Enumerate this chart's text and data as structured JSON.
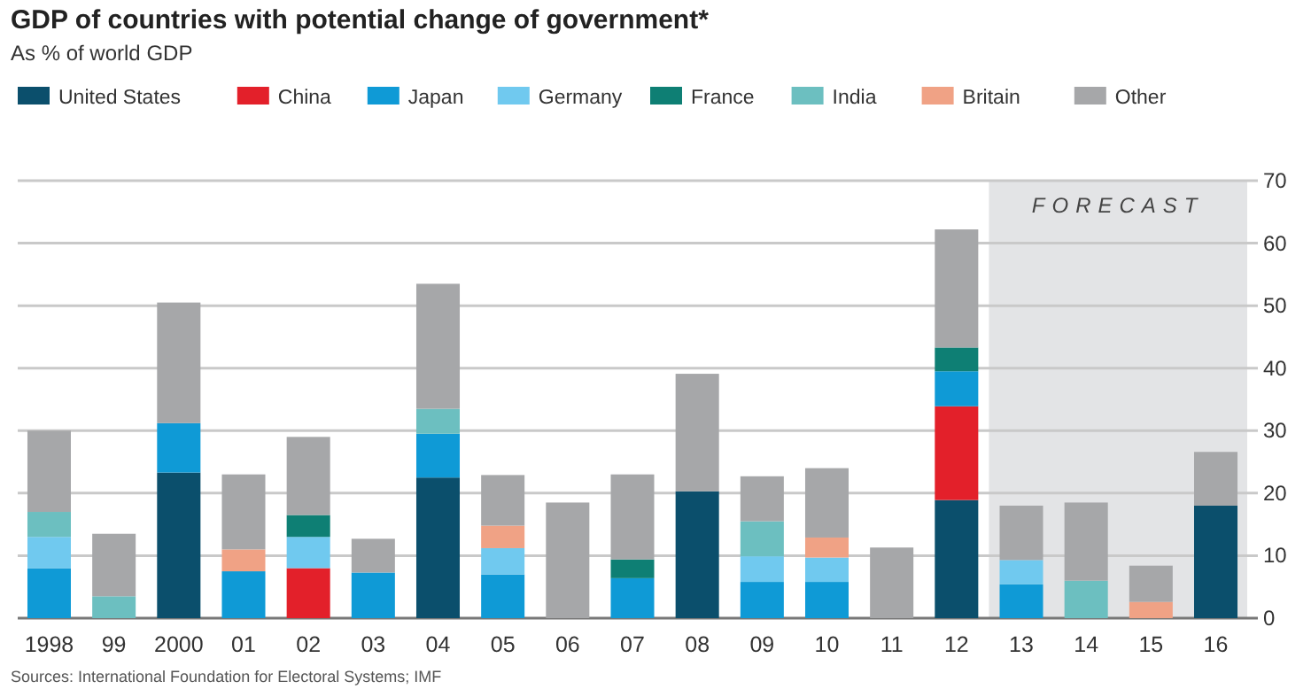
{
  "chart_data": {
    "type": "bar",
    "title": "GDP of countries with potential change of government*",
    "subtitle": "As % of world GDP",
    "stacked": true,
    "categories": [
      "1998",
      "99",
      "2000",
      "01",
      "02",
      "03",
      "04",
      "05",
      "06",
      "07",
      "08",
      "09",
      "10",
      "11",
      "12",
      "13",
      "14",
      "15",
      "16"
    ],
    "series": [
      {
        "name": "United States",
        "color": "#0b4f6c",
        "values": [
          null,
          null,
          23.3,
          null,
          null,
          null,
          22.5,
          null,
          null,
          null,
          20.3,
          null,
          null,
          null,
          18.9,
          null,
          null,
          null,
          18
        ]
      },
      {
        "name": "China",
        "color": "#e3202a",
        "values": [
          null,
          null,
          null,
          null,
          8,
          null,
          null,
          null,
          null,
          null,
          null,
          null,
          null,
          null,
          15,
          null,
          null,
          null,
          null
        ]
      },
      {
        "name": "Japan",
        "color": "#0f9ad6",
        "values": [
          8,
          null,
          7.9,
          7.5,
          null,
          7.3,
          7,
          7,
          null,
          6.4,
          null,
          5.8,
          5.8,
          null,
          5.6,
          5.4,
          null,
          null,
          null
        ]
      },
      {
        "name": "Germany",
        "color": "#70c9ef",
        "values": [
          5,
          null,
          null,
          null,
          5,
          null,
          null,
          4.2,
          null,
          null,
          null,
          4.1,
          3.9,
          null,
          null,
          3.9,
          null,
          null,
          null
        ]
      },
      {
        "name": "France",
        "color": "#0e7f74",
        "values": [
          null,
          null,
          null,
          null,
          3.5,
          null,
          null,
          null,
          null,
          3,
          null,
          null,
          null,
          null,
          3.8,
          null,
          null,
          null,
          null
        ]
      },
      {
        "name": "India",
        "color": "#6cbfc0",
        "values": [
          4,
          3.5,
          null,
          null,
          null,
          null,
          4,
          null,
          null,
          null,
          null,
          5.6,
          null,
          null,
          null,
          null,
          6,
          null,
          null
        ]
      },
      {
        "name": "Britain",
        "color": "#f0a285",
        "values": [
          null,
          null,
          null,
          3.5,
          null,
          null,
          null,
          3.6,
          null,
          null,
          null,
          null,
          3.2,
          null,
          null,
          null,
          null,
          2.6,
          null
        ]
      },
      {
        "name": "Other",
        "color": "#a6a7a9",
        "values": [
          13,
          10,
          19.3,
          12,
          12.5,
          5.4,
          20,
          8.1,
          18.5,
          13.6,
          18.8,
          7.2,
          11.1,
          11.3,
          18.9,
          8.7,
          12.5,
          5.8,
          8.6
        ]
      }
    ],
    "ylim": [
      0,
      70
    ],
    "yticks": [
      0,
      10,
      20,
      30,
      40,
      50,
      60,
      70
    ],
    "grid": "y",
    "legend": "top",
    "bands": [
      {
        "axis": "x",
        "from": "13",
        "to": "16",
        "label": "FORECAST",
        "color": "#e3e4e6"
      }
    ],
    "annotations": [
      "Sources: International Foundation for Electoral Systems; IMF"
    ]
  }
}
